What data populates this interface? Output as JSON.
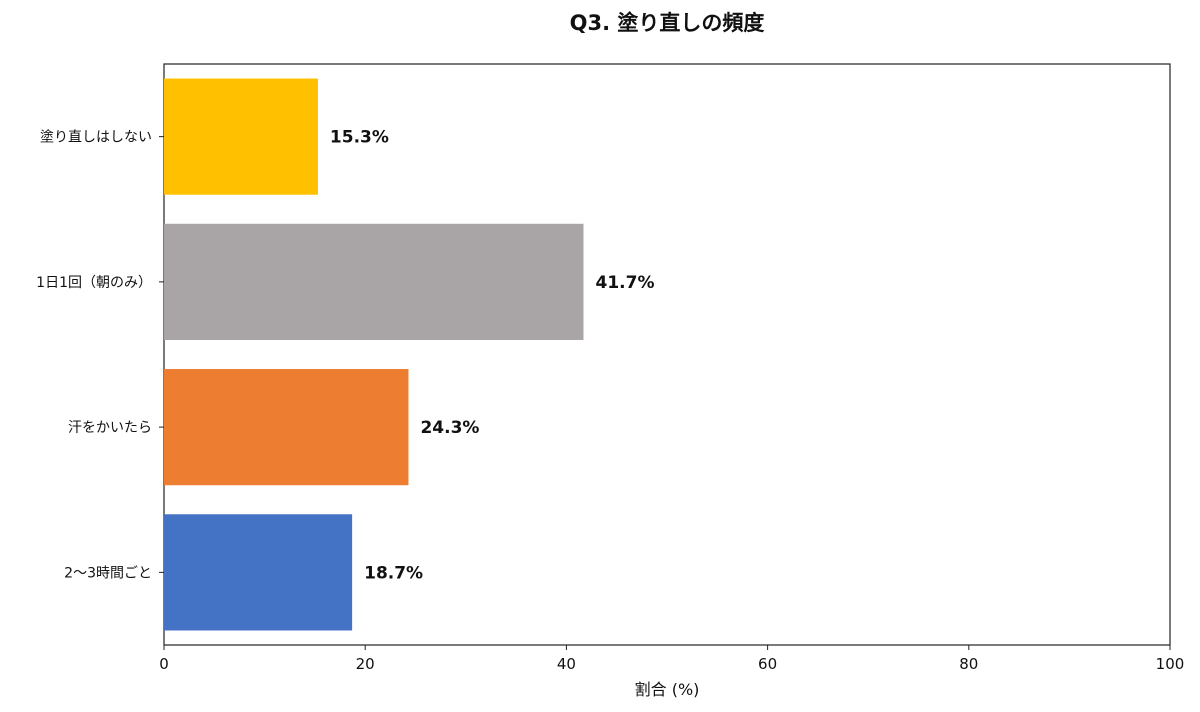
{
  "chart_data": {
    "type": "bar",
    "orientation": "horizontal",
    "title": "Q3. 塗り直しの頻度",
    "xlabel": "割合 (%)",
    "ylabel": "",
    "xlim": [
      0,
      100
    ],
    "xticks": [
      0,
      20,
      40,
      60,
      80,
      100
    ],
    "grid": false,
    "categories": [
      "塗り直しはしない",
      "1日1回（朝のみ）",
      "汗をかいたら",
      "2〜3時間ごと"
    ],
    "values": [
      15.3,
      41.7,
      24.3,
      18.7
    ],
    "data_labels": [
      "15.3%",
      "41.7%",
      "24.3%",
      "18.7%"
    ],
    "colors": [
      "#FFC000",
      "#A9A5A7",
      "#ED7D31",
      "#4472C4"
    ]
  }
}
